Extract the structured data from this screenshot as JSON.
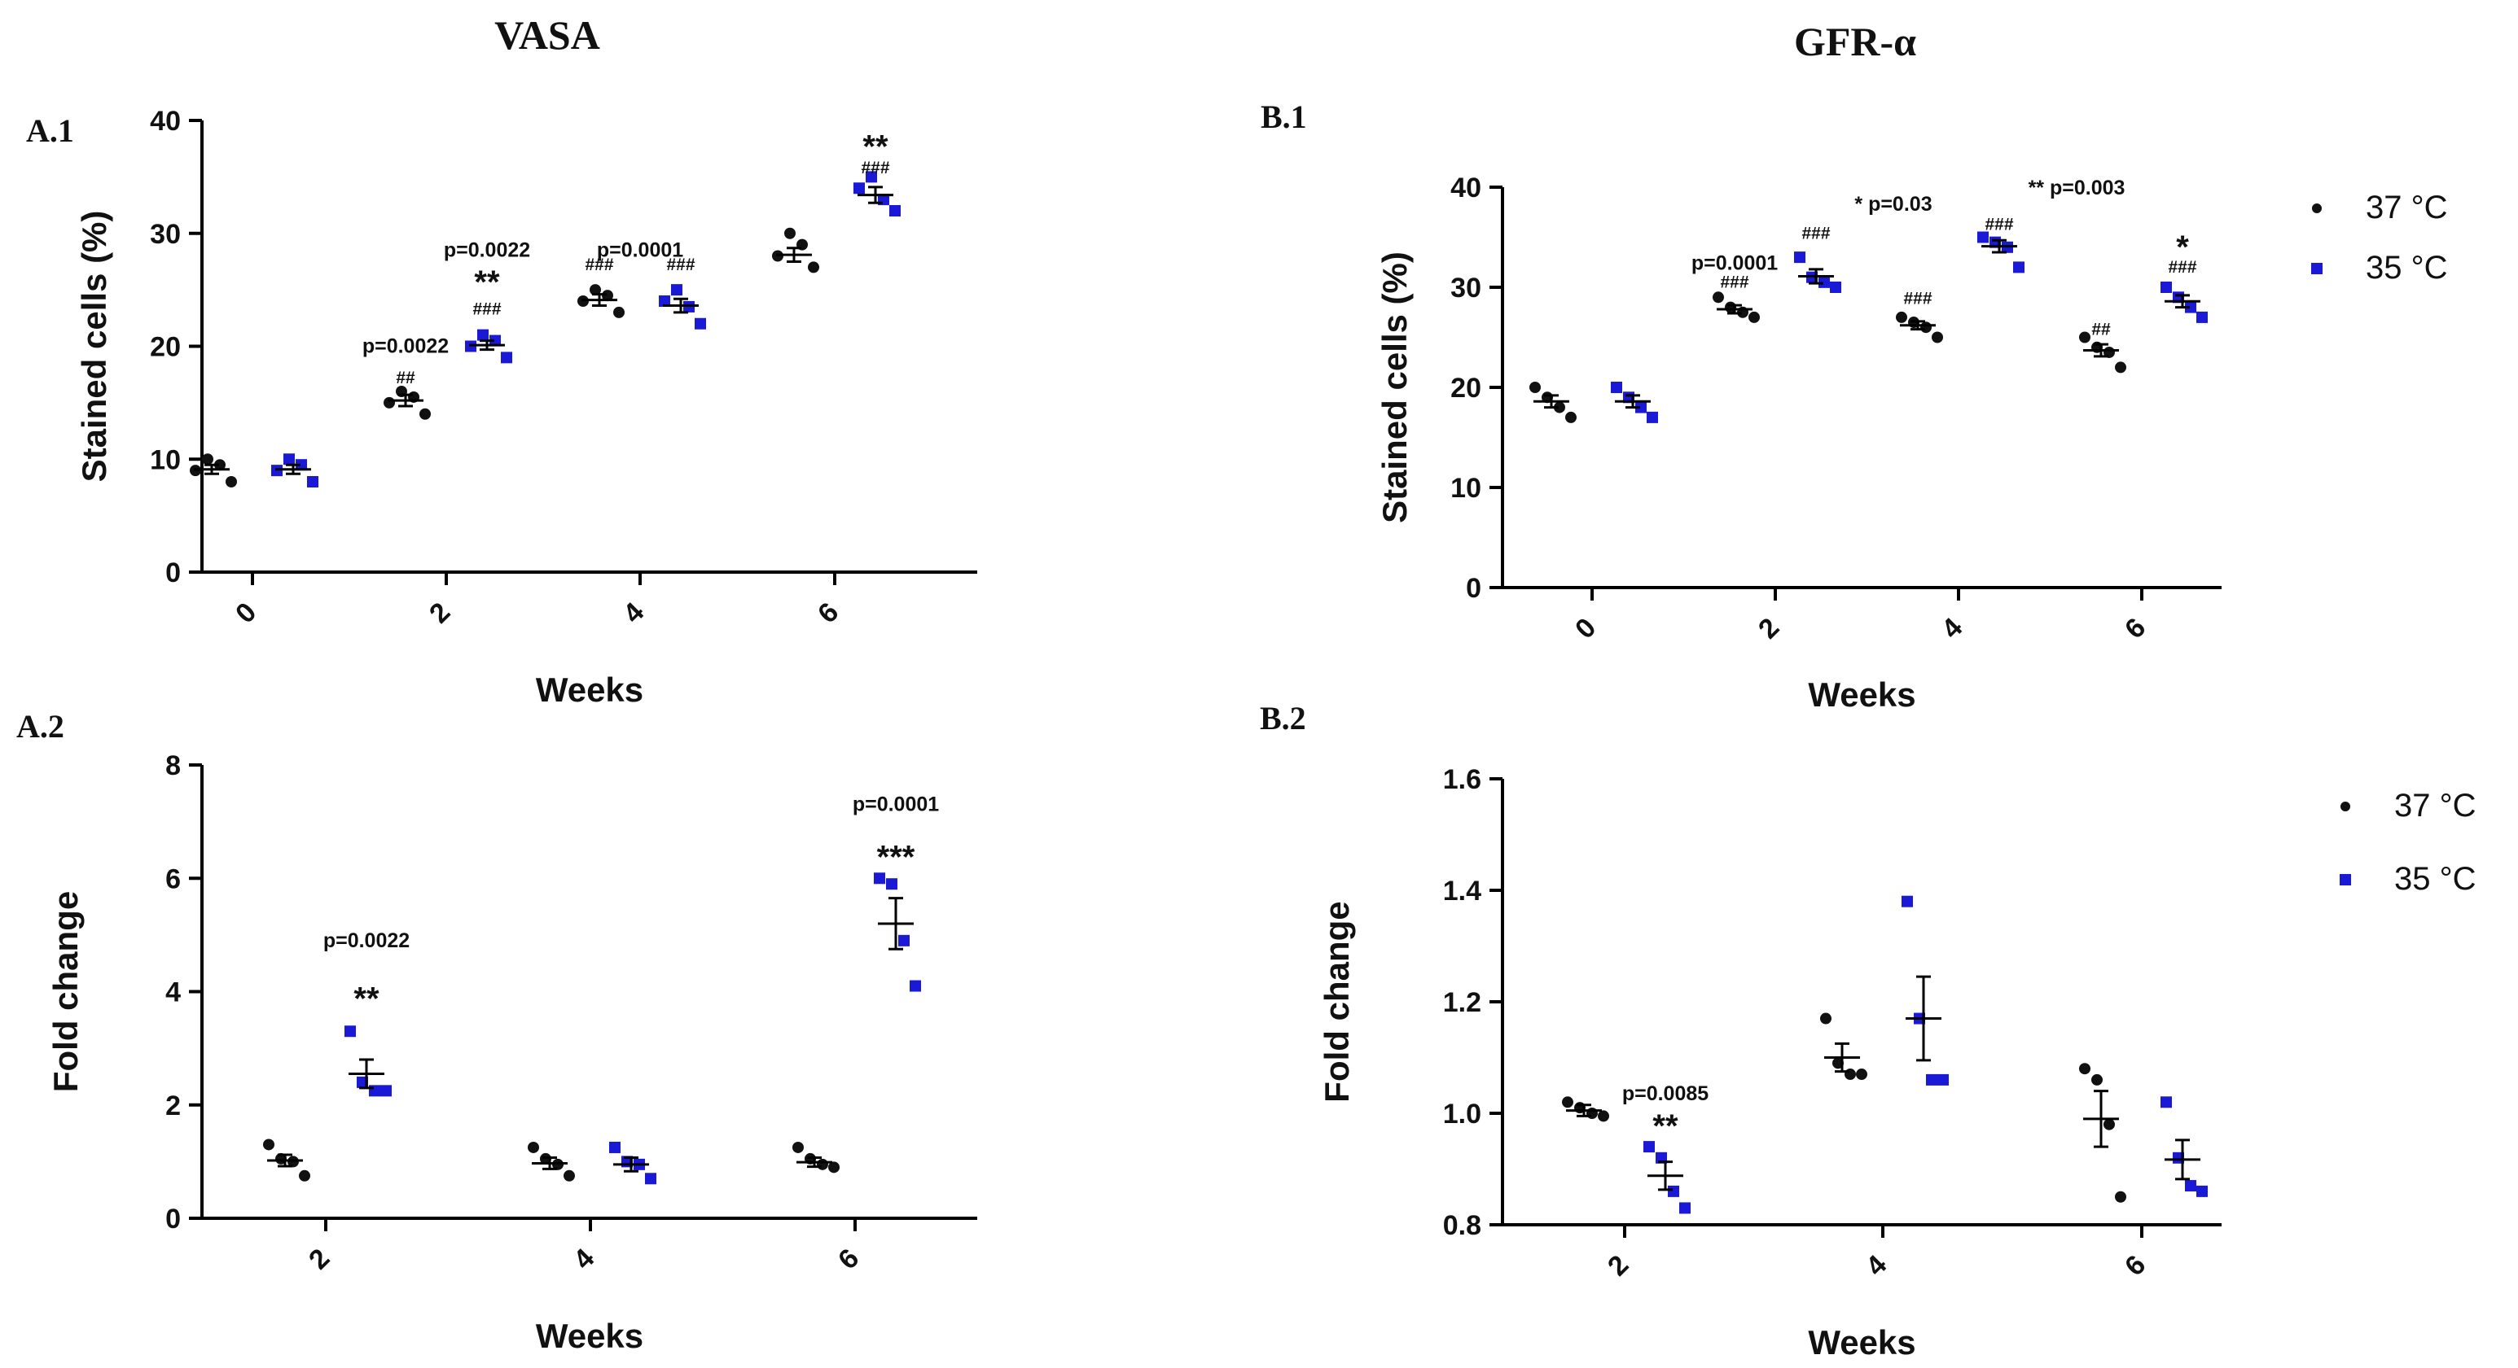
{
  "column_titles": {
    "left": "VASA",
    "right": "GFR-α"
  },
  "colors": {
    "c37": "#111111",
    "c35": "#1a1ad6",
    "axis": "#000000"
  },
  "legend_items": [
    {
      "label": "37 °C",
      "color": "#111111",
      "marker": "circle"
    },
    {
      "label": "35 °C",
      "color": "#1a1ad6",
      "marker": "square"
    }
  ],
  "chart_data": [
    {
      "id": "A1",
      "panel_label": "A.1",
      "type": "scatter",
      "xlabel": "Weeks",
      "ylabel": "Stained cells (%)",
      "categories": [
        "0",
        "2",
        "4",
        "6"
      ],
      "ylim": [
        0,
        40
      ],
      "yticks": [
        "0",
        "10",
        "20",
        "30",
        "40"
      ],
      "y_tick_values": [
        0,
        10,
        20,
        30,
        40
      ],
      "series": [
        {
          "name": "37 °C",
          "points": [
            [
              9,
              10,
              9.5,
              8
            ],
            [
              15,
              16,
              15.5,
              14
            ],
            [
              24,
              25,
              24.5,
              23
            ],
            [
              28,
              30,
              29,
              27
            ]
          ],
          "mean": [
            9.1,
            15.2,
            24.1,
            28.1
          ],
          "sem": [
            0.4,
            0.5,
            0.5,
            0.6
          ]
        },
        {
          "name": "35 °C",
          "points": [
            [
              9,
              10,
              9.5,
              8
            ],
            [
              20,
              21,
              20.5,
              19
            ],
            [
              24,
              25,
              23.5,
              22
            ],
            [
              34,
              35,
              33,
              32
            ]
          ],
          "mean": [
            9.1,
            20.1,
            23.6,
            33.4
          ],
          "sem": [
            0.4,
            0.4,
            0.6,
            0.7
          ]
        }
      ],
      "annotations": [
        {
          "cat": 1,
          "series": 0,
          "lines": [
            "p=0.0022",
            "##"
          ],
          "y": [
            20,
            17.3
          ]
        },
        {
          "cat": 1,
          "series": 1,
          "lines": [
            "p=0.0022",
            "**",
            "###"
          ],
          "y": [
            28.5,
            26.3,
            23.4
          ]
        },
        {
          "cat": 2,
          "series": 0,
          "lines": [
            "###"
          ],
          "y": [
            27.3
          ]
        },
        {
          "cat": 2,
          "series": 1,
          "lines": [
            "###"
          ],
          "y": [
            27.3
          ]
        },
        {
          "cat": 2,
          "series": "mid",
          "lines": [
            "p=0.0001"
          ],
          "y": [
            28.5
          ]
        },
        {
          "cat": 3,
          "series": 1,
          "lines": [
            "**",
            "###"
          ],
          "y": [
            38.3,
            35.9
          ]
        }
      ]
    },
    {
      "id": "B1",
      "panel_label": "B.1",
      "type": "scatter",
      "xlabel": "Weeks",
      "ylabel": "Stained cells (%)",
      "categories": [
        "0",
        "2",
        "4",
        "6"
      ],
      "ylim": [
        0,
        40
      ],
      "yticks": [
        "0",
        "10",
        "20",
        "30",
        "40"
      ],
      "y_tick_values": [
        0,
        10,
        20,
        30,
        40
      ],
      "series": [
        {
          "name": "37 °C",
          "points": [
            [
              20,
              19,
              18,
              17
            ],
            [
              29,
              28,
              27.5,
              27
            ],
            [
              27,
              26.5,
              26,
              25
            ],
            [
              25,
              24,
              23.5,
              22
            ]
          ],
          "mean": [
            18.6,
            27.8,
            26.2,
            23.7
          ],
          "sem": [
            0.6,
            0.4,
            0.4,
            0.6
          ]
        },
        {
          "name": "35 °C",
          "points": [
            [
              20,
              19,
              18,
              17
            ],
            [
              33,
              31,
              30.5,
              30
            ],
            [
              35,
              34.5,
              34,
              32
            ],
            [
              30,
              29,
              28,
              27
            ]
          ],
          "mean": [
            18.6,
            31.1,
            34.1,
            28.6
          ],
          "sem": [
            0.6,
            0.7,
            0.6,
            0.6
          ]
        }
      ],
      "annotations": [
        {
          "cat": 1,
          "series": 0,
          "lines": [
            "p=0.0001",
            "###"
          ],
          "y": [
            32.4,
            30.6
          ]
        },
        {
          "cat": 1,
          "series": 1,
          "lines": [
            "###"
          ],
          "y": [
            35.5
          ]
        },
        {
          "cat": 1,
          "series": "sig",
          "lines": [
            "* p=0.03"
          ],
          "y": [
            38.3
          ]
        },
        {
          "cat": 2,
          "series": 0,
          "lines": [
            "###"
          ],
          "y": [
            29
          ]
        },
        {
          "cat": 2,
          "series": 1,
          "lines": [
            "###"
          ],
          "y": [
            36.4
          ]
        },
        {
          "cat": 2,
          "series": "sig",
          "lines": [
            "**  p=0.003"
          ],
          "y": [
            39.9
          ]
        },
        {
          "cat": 3,
          "series": 0,
          "lines": [
            "##"
          ],
          "y": [
            25.9
          ]
        },
        {
          "cat": 3,
          "series": 1,
          "lines": [
            "*",
            "###"
          ],
          "y": [
            34.7,
            32.1
          ]
        }
      ],
      "legend": true
    },
    {
      "id": "A2",
      "panel_label": "A.2",
      "type": "scatter",
      "xlabel": "Weeks",
      "ylabel": "Fold change",
      "categories": [
        "2",
        "4",
        "6"
      ],
      "ylim": [
        0,
        8
      ],
      "yticks": [
        "0",
        "2",
        "4",
        "6",
        "8"
      ],
      "y_tick_values": [
        0,
        2,
        4,
        6,
        8
      ],
      "series": [
        {
          "name": "37 °C",
          "points": [
            [
              1.3,
              1.05,
              1.0,
              0.75
            ],
            [
              1.25,
              1.05,
              0.95,
              0.75
            ],
            [
              1.25,
              1.05,
              0.95,
              0.9
            ]
          ],
          "mean": [
            1.02,
            0.97,
            0.99
          ],
          "sem": [
            0.1,
            0.1,
            0.08
          ]
        },
        {
          "name": "35 °C",
          "points": [
            [
              3.3,
              2.4,
              2.25,
              2.25
            ],
            [
              1.25,
              1.0,
              0.95,
              0.7
            ],
            [
              6.0,
              5.9,
              4.9,
              4.1
            ]
          ],
          "mean": [
            2.55,
            0.95,
            5.2
          ],
          "sem": [
            0.25,
            0.12,
            0.45
          ]
        }
      ],
      "annotations": [
        {
          "cat": 0,
          "series": 1,
          "lines": [
            "p=0.0022",
            "**"
          ],
          "y": [
            4.9,
            4.0
          ]
        },
        {
          "cat": 2,
          "series": 1,
          "lines": [
            "p=0.0001",
            "***"
          ],
          "y": [
            7.3,
            6.5
          ]
        }
      ]
    },
    {
      "id": "B2",
      "panel_label": "B.2",
      "type": "scatter",
      "xlabel": "Weeks",
      "ylabel": "Fold change",
      "categories": [
        "2",
        "4",
        "6"
      ],
      "ylim": [
        0.8,
        1.6
      ],
      "yticks": [
        "0.8",
        "1.0",
        "1.2",
        "1.4",
        "1.6"
      ],
      "y_tick_values": [
        0.8,
        1.0,
        1.2,
        1.4,
        1.6
      ],
      "series": [
        {
          "name": "37 °C",
          "points": [
            [
              1.02,
              1.01,
              1.0,
              0.995
            ],
            [
              1.17,
              1.09,
              1.07,
              1.07
            ],
            [
              1.08,
              1.06,
              0.98,
              0.85
            ]
          ],
          "mean": [
            1.005,
            1.1,
            0.99
          ],
          "sem": [
            0.01,
            0.025,
            0.05
          ]
        },
        {
          "name": "35 °C",
          "points": [
            [
              0.94,
              0.92,
              0.86,
              0.83
            ],
            [
              1.38,
              1.17,
              1.06,
              1.06
            ],
            [
              1.02,
              0.92,
              0.87,
              0.86
            ]
          ],
          "mean": [
            0.888,
            1.17,
            0.917
          ],
          "sem": [
            0.025,
            0.075,
            0.035
          ]
        }
      ],
      "annotations": [
        {
          "cat": 0,
          "series": 1,
          "lines": [
            "p=0.0085",
            "**"
          ],
          "y": [
            1.035,
            0.99
          ]
        }
      ],
      "legend": true
    }
  ]
}
